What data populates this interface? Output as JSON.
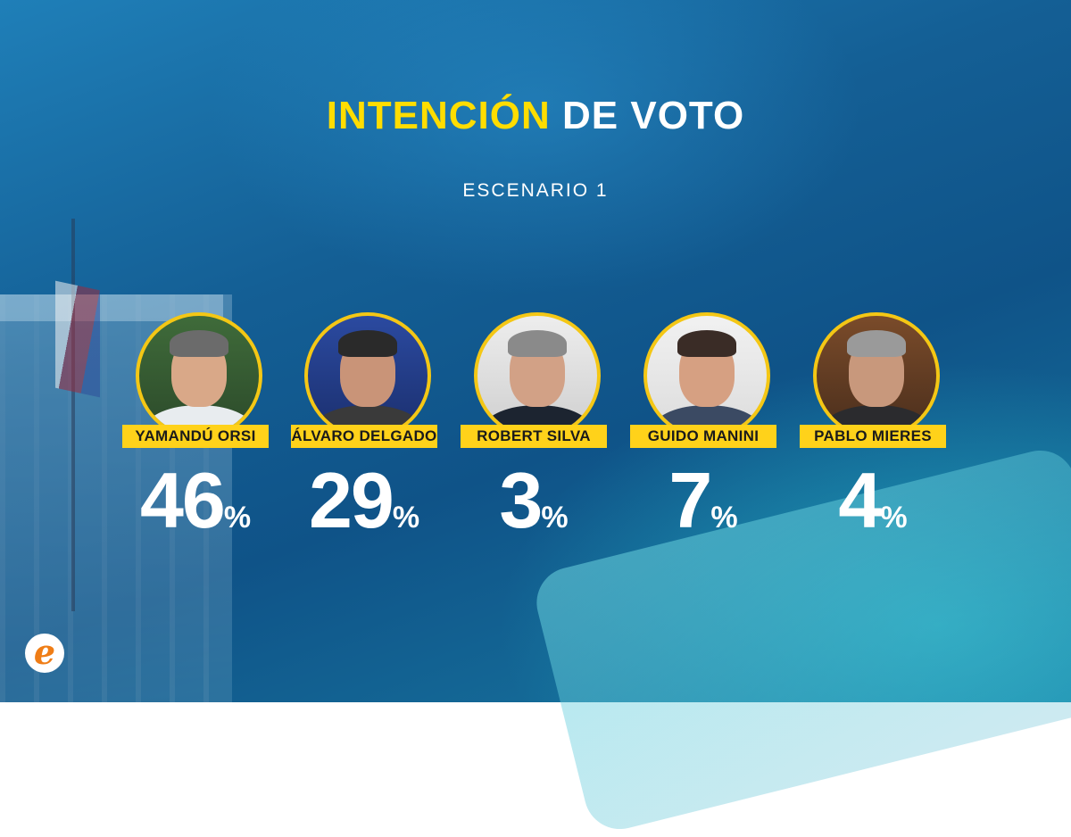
{
  "title": {
    "part1": "INTENCIÓN",
    "part2": "DE VOTO"
  },
  "subtitle": "ESCENARIO 1",
  "colors": {
    "accent_yellow": "#ffd21a",
    "border_gold": "#f4c715",
    "background_blue": "#145f95"
  },
  "candidates": [
    {
      "name": "YAMANDÚ ORSI",
      "value": "46",
      "percent_sign": "%"
    },
    {
      "name": "ÁLVARO DELGADO",
      "value": "29",
      "percent_sign": "%"
    },
    {
      "name": "ROBERT SILVA",
      "value": "3",
      "percent_sign": "%"
    },
    {
      "name": "GUIDO MANINI",
      "value": "7",
      "percent_sign": "%"
    },
    {
      "name": "PABLO MIERES",
      "value": "4",
      "percent_sign": "%"
    }
  ],
  "logo": {
    "letter": "e"
  },
  "chart_data": {
    "type": "bar",
    "categories": [
      "YAMANDÚ ORSI",
      "ÁLVARO DELGADO",
      "ROBERT SILVA",
      "GUIDO MANINI",
      "PABLO MIERES"
    ],
    "values": [
      46,
      29,
      3,
      7,
      4
    ],
    "title": "INTENCIÓN DE VOTO",
    "subtitle": "ESCENARIO 1"
  }
}
